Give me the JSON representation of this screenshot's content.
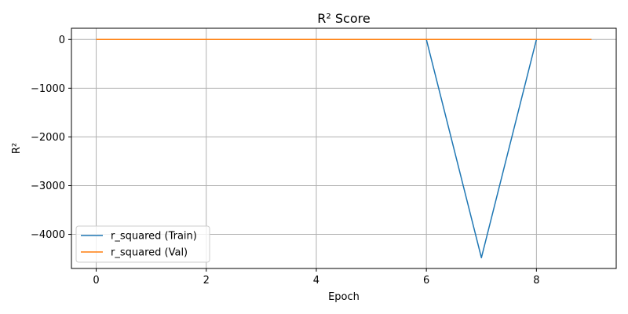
{
  "chart_data": {
    "type": "line",
    "title": "R² Score",
    "xlabel": "Epoch",
    "ylabel": "R²",
    "x": [
      0,
      1,
      2,
      3,
      4,
      5,
      6,
      7,
      8,
      9
    ],
    "xlim": [
      -0.45,
      9.45
    ],
    "ylim": [
      -4700,
      230
    ],
    "xticks": [
      0,
      2,
      4,
      6,
      8
    ],
    "yticks": [
      0,
      -1000,
      -2000,
      -3000,
      -4000
    ],
    "ytick_labels": [
      "0",
      "−1000",
      "−2000",
      "−3000",
      "−4000"
    ],
    "grid": true,
    "legend_position": "lower-left",
    "series": [
      {
        "name": "r_squared (Train)",
        "color": "#1f77b4",
        "values": [
          0,
          0,
          0,
          0,
          0,
          0,
          0,
          -4480,
          0,
          0
        ]
      },
      {
        "name": "r_squared (Val)",
        "color": "#ff7f0e",
        "values": [
          0,
          0,
          0,
          0,
          0,
          0,
          0,
          0,
          0,
          0
        ]
      }
    ]
  }
}
